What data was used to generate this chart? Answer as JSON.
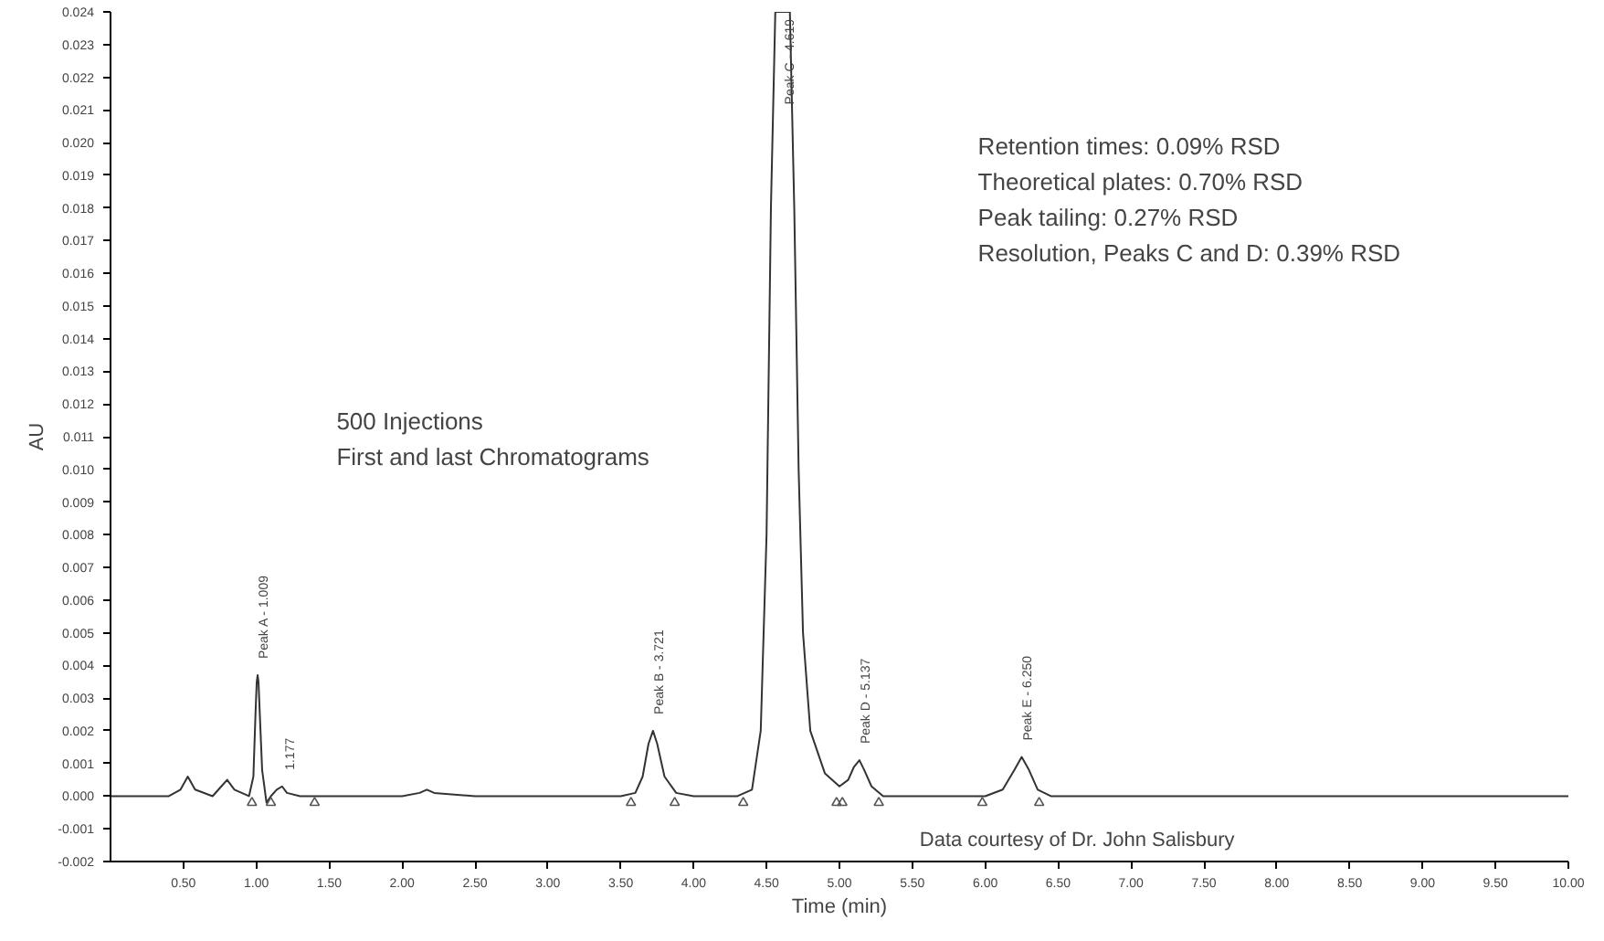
{
  "chart_data": {
    "type": "line",
    "xlabel": "Time (min)",
    "ylabel": "AU",
    "xlim": [
      0,
      10
    ],
    "ylim": [
      -0.002,
      0.024
    ],
    "xticks": [
      {
        "value": 0.5,
        "label": "0.50"
      },
      {
        "value": 1,
        "label": "1.00"
      },
      {
        "value": 1.5,
        "label": "1.50"
      },
      {
        "value": 2,
        "label": "2.00"
      },
      {
        "value": 2.5,
        "label": "2.50"
      },
      {
        "value": 3,
        "label": "3.00"
      },
      {
        "value": 3.5,
        "label": "3.50"
      },
      {
        "value": 4,
        "label": "4.00"
      },
      {
        "value": 4.5,
        "label": "4.50"
      },
      {
        "value": 5,
        "label": "5.00"
      },
      {
        "value": 5.5,
        "label": "5.50"
      },
      {
        "value": 6,
        "label": "6.00"
      },
      {
        "value": 6.5,
        "label": "6.50"
      },
      {
        "value": 7,
        "label": "7.00"
      },
      {
        "value": 7.5,
        "label": "7.50"
      },
      {
        "value": 8,
        "label": "8.00"
      },
      {
        "value": 8.5,
        "label": "8.50"
      },
      {
        "value": 9,
        "label": "9.00"
      },
      {
        "value": 9.5,
        "label": "9.50"
      },
      {
        "value": 10,
        "label": "10.00"
      }
    ],
    "yticks": [
      {
        "value": -0.002,
        "label": "-0.002"
      },
      {
        "value": -0.001,
        "label": "-0.001"
      },
      {
        "value": 0,
        "label": "0.000"
      },
      {
        "value": 0.001,
        "label": "0.001"
      },
      {
        "value": 0.002,
        "label": "0.002"
      },
      {
        "value": 0.003,
        "label": "0.003"
      },
      {
        "value": 0.004,
        "label": "0.004"
      },
      {
        "value": 0.005,
        "label": "0.005"
      },
      {
        "value": 0.006,
        "label": "0.006"
      },
      {
        "value": 0.007,
        "label": "0.007"
      },
      {
        "value": 0.008,
        "label": "0.008"
      },
      {
        "value": 0.009,
        "label": "0.009"
      },
      {
        "value": 0.01,
        "label": "0.010"
      },
      {
        "value": 0.011,
        "label": "0.011"
      },
      {
        "value": 0.012,
        "label": "0.012"
      },
      {
        "value": 0.013,
        "label": "0.013"
      },
      {
        "value": 0.014,
        "label": "0.014"
      },
      {
        "value": 0.015,
        "label": "0.015"
      },
      {
        "value": 0.016,
        "label": "0.016"
      },
      {
        "value": 0.017,
        "label": "0.017"
      },
      {
        "value": 0.018,
        "label": "0.018"
      },
      {
        "value": 0.019,
        "label": "0.019"
      },
      {
        "value": 0.02,
        "label": "0.020"
      },
      {
        "value": 0.021,
        "label": "0.021"
      },
      {
        "value": 0.022,
        "label": "0.022"
      },
      {
        "value": 0.023,
        "label": "0.023"
      },
      {
        "value": 0.024,
        "label": "0.024"
      }
    ],
    "grid": false,
    "series": [
      {
        "color": "#333333",
        "x": [
          0,
          0.4,
          0.48,
          0.53,
          0.58,
          0.7,
          0.76,
          0.8,
          0.85,
          0.95,
          0.98,
          0.995,
          1.003,
          1.009,
          1.015,
          1.025,
          1.04,
          1.07,
          1.1,
          1.14,
          1.177,
          1.21,
          1.3,
          1.5,
          2.0,
          2.12,
          2.17,
          2.22,
          2.5,
          3.0,
          3.5,
          3.6,
          3.65,
          3.69,
          3.721,
          3.75,
          3.8,
          3.88,
          4.0,
          4.3,
          4.4,
          4.46,
          4.5,
          4.53,
          4.56,
          4.6,
          4.66,
          4.69,
          4.72,
          4.75,
          4.8,
          4.9,
          5.0,
          5.06,
          5.1,
          5.137,
          5.17,
          5.22,
          5.3,
          5.5,
          6.0,
          6.12,
          6.2,
          6.25,
          6.3,
          6.36,
          6.45,
          7.0,
          8.0,
          9.0,
          10.0
        ],
        "values": [
          0,
          0,
          0.0002,
          0.0006,
          0.0002,
          0,
          0.0003,
          0.0005,
          0.0002,
          0,
          0.0006,
          0.0026,
          0.0035,
          0.0037,
          0.0035,
          0.0024,
          0.0008,
          -0.0002,
          0,
          0.0002,
          0.0003,
          0.0001,
          0,
          0,
          0,
          0.0001,
          0.0002,
          0.0001,
          0,
          0,
          0,
          0.0001,
          0.0006,
          0.0016,
          0.002,
          0.0016,
          0.0006,
          0.0001,
          0,
          0,
          0.0002,
          0.002,
          0.008,
          0.018,
          0.024,
          0.024,
          0.024,
          0.018,
          0.01,
          0.005,
          0.002,
          0.0007,
          0.0003,
          0.0005,
          0.0009,
          0.0011,
          0.0008,
          0.0003,
          0,
          0,
          0,
          0.0002,
          0.0008,
          0.0012,
          0.0008,
          0.0002,
          0,
          0,
          0,
          0,
          0
        ]
      },
      {
        "type": "scatter",
        "marker": "triangle",
        "color": "#555555",
        "x": [
          0.97,
          1.1,
          1.4,
          3.57,
          3.87,
          4.34,
          4.98,
          5.02,
          5.27,
          5.98,
          6.37
        ],
        "values": [
          -0.0002,
          -0.0002,
          -0.0002,
          -0.0002,
          -0.0002,
          -0.0002,
          -0.0002,
          -0.0002,
          -0.0002,
          -0.0002,
          -0.0002
        ]
      }
    ],
    "annotations": [
      "Retention times: 0.09% RSD\nTheoretical plates: 0.70% RSD\nPeak tailing: 0.27% RSD\nResolution, Peaks C and D: 0.39% RSD",
      "500 Injections\nFirst and last Chromatograms",
      "Data courtesy of Dr. John Salisbury",
      {
        "text": "Peak A - 1.009",
        "x": 1.009,
        "y": 0.0037
      },
      {
        "text": "1.177",
        "x": 1.177,
        "y": 0.0003
      },
      {
        "text": "Peak B - 3.721",
        "x": 3.721,
        "y": 0.002
      },
      {
        "text": "Peak C - 4.619",
        "x": 4.619,
        "y": 0.024
      },
      {
        "text": "Peak D - 5.137",
        "x": 5.137,
        "y": 0.0011
      },
      {
        "text": "Peak E - 6.250",
        "x": 6.25,
        "y": 0.0012
      }
    ]
  }
}
